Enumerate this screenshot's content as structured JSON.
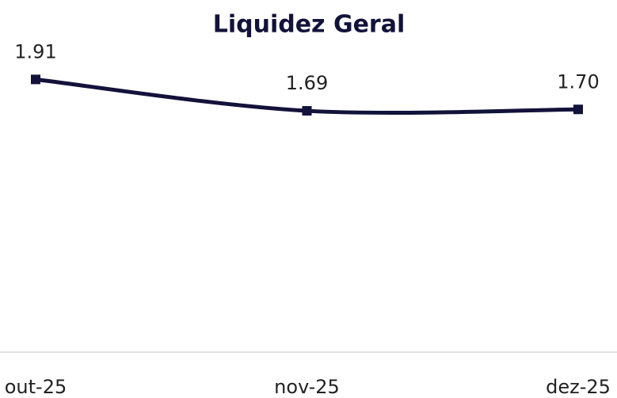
{
  "chart_data": {
    "type": "line",
    "title": "Liquidez Geral",
    "categories": [
      "out-25",
      "nov-25",
      "dez-25"
    ],
    "series": [
      {
        "name": "Liquidez Geral",
        "color": "#12123a",
        "values": [
          1.91,
          1.69,
          1.7
        ],
        "value_labels": [
          "1.91",
          "1.69",
          "1.70"
        ]
      }
    ],
    "ylim": [
      0,
      2.3
    ]
  }
}
